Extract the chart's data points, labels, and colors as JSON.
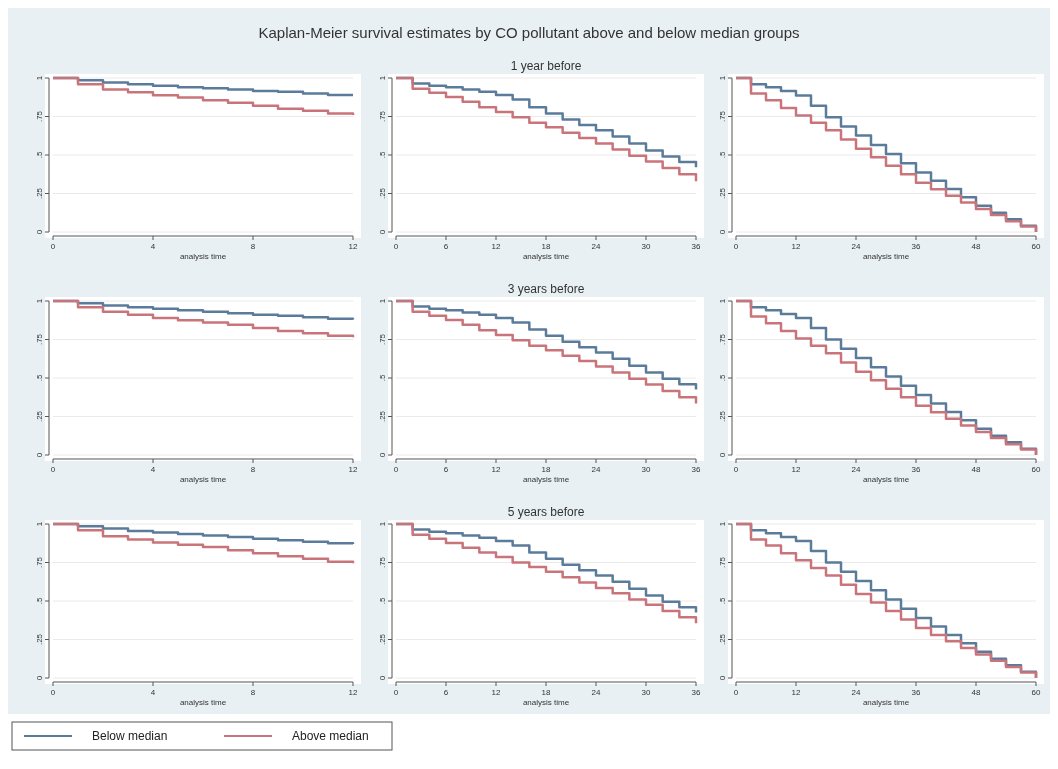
{
  "chart_data": [
    {
      "type": "step",
      "legend": "bottom",
      "xlabel": "analysis time",
      "x": [
        0,
        1,
        2,
        3,
        4,
        5,
        6,
        7,
        8,
        9,
        10,
        11,
        12
      ],
      "xlim": [
        0,
        12
      ],
      "xticks": [
        0,
        4,
        8,
        12
      ],
      "ylim": [
        0,
        1
      ],
      "yticks": [
        {
          "value": 0,
          "label": "0"
        },
        {
          "value": 0.25,
          "label": ".25"
        },
        {
          "value": 0.5,
          "label": ".5"
        },
        {
          "value": 0.75,
          "label": ".75"
        },
        {
          "value": 1,
          "label": "1"
        }
      ],
      "grid": "y",
      "series": [
        {
          "name": "Below median",
          "color": "#5b7b9b",
          "values": [
            1,
            0.985,
            0.97,
            0.96,
            0.95,
            0.94,
            0.933,
            0.925,
            0.916,
            0.91,
            0.9,
            0.89,
            0.89
          ]
        },
        {
          "name": "Above median",
          "color": "#c9747a",
          "values": [
            1,
            0.96,
            0.925,
            0.907,
            0.888,
            0.873,
            0.855,
            0.84,
            0.82,
            0.8,
            0.787,
            0.77,
            0.76
          ]
        }
      ]
    },
    {
      "type": "step",
      "title": "Kaplan-Meier survival estimates by CO pollutant above and below median groups",
      "subtitle": "1 year before",
      "xlabel": "analysis time",
      "x": [
        0,
        2,
        4,
        6,
        8,
        10,
        12,
        14,
        16,
        18,
        20,
        22,
        24,
        26,
        28,
        30,
        32,
        34,
        36
      ],
      "xlim": [
        0,
        36
      ],
      "xticks": [
        0,
        6,
        12,
        18,
        24,
        30,
        36
      ],
      "ylim": [
        0,
        1
      ],
      "yticks": [
        {
          "value": 0,
          "label": "0"
        },
        {
          "value": 0.25,
          "label": ".25"
        },
        {
          "value": 0.5,
          "label": ".5"
        },
        {
          "value": 0.75,
          "label": ".75"
        },
        {
          "value": 1,
          "label": "1"
        }
      ],
      "grid": "y",
      "series": [
        {
          "color": "#5b7b9b",
          "values": [
            1,
            0.965,
            0.95,
            0.94,
            0.925,
            0.91,
            0.89,
            0.86,
            0.81,
            0.77,
            0.73,
            0.695,
            0.66,
            0.62,
            0.575,
            0.53,
            0.49,
            0.455,
            0.42
          ]
        },
        {
          "color": "#c9747a",
          "values": [
            1,
            0.93,
            0.905,
            0.877,
            0.845,
            0.81,
            0.78,
            0.745,
            0.71,
            0.68,
            0.645,
            0.61,
            0.575,
            0.535,
            0.495,
            0.457,
            0.415,
            0.375,
            0.33
          ]
        }
      ]
    },
    {
      "type": "step",
      "xlabel": "analysis time",
      "x": [
        0,
        3,
        6,
        9,
        12,
        15,
        18,
        21,
        24,
        27,
        30,
        33,
        36,
        39,
        42,
        45,
        48,
        51,
        54,
        57,
        60
      ],
      "xlim": [
        0,
        60
      ],
      "xticks": [
        0,
        12,
        24,
        36,
        48,
        60
      ],
      "ylim": [
        0,
        1
      ],
      "yticks": [
        {
          "value": 0,
          "label": "0"
        },
        {
          "value": 0.25,
          "label": ".25"
        },
        {
          "value": 0.5,
          "label": ".5"
        },
        {
          "value": 0.75,
          "label": ".75"
        },
        {
          "value": 1,
          "label": "1"
        }
      ],
      "grid": "y",
      "series": [
        {
          "color": "#5b7b9b",
          "values": [
            1,
            0.96,
            0.94,
            0.915,
            0.887,
            0.82,
            0.745,
            0.685,
            0.626,
            0.565,
            0.507,
            0.447,
            0.387,
            0.333,
            0.28,
            0.225,
            0.17,
            0.125,
            0.083,
            0.04,
            0
          ]
        },
        {
          "color": "#c9747a",
          "values": [
            1,
            0.9,
            0.855,
            0.805,
            0.757,
            0.71,
            0.66,
            0.6,
            0.54,
            0.485,
            0.43,
            0.375,
            0.32,
            0.277,
            0.235,
            0.192,
            0.15,
            0.11,
            0.07,
            0.035,
            0
          ]
        }
      ]
    },
    {
      "type": "step",
      "xlabel": "analysis time",
      "x": [
        0,
        1,
        2,
        3,
        4,
        5,
        6,
        7,
        8,
        9,
        10,
        11,
        12
      ],
      "xlim": [
        0,
        12
      ],
      "xticks": [
        0,
        4,
        8,
        12
      ],
      "ylim": [
        0,
        1
      ],
      "yticks": [
        {
          "value": 0,
          "label": "0"
        },
        {
          "value": 0.25,
          "label": ".25"
        },
        {
          "value": 0.5,
          "label": ".5"
        },
        {
          "value": 0.75,
          "label": ".75"
        },
        {
          "value": 1,
          "label": "1"
        }
      ],
      "grid": "y",
      "series": [
        {
          "color": "#5b7b9b",
          "values": [
            1,
            0.985,
            0.97,
            0.96,
            0.95,
            0.94,
            0.93,
            0.92,
            0.91,
            0.905,
            0.895,
            0.885,
            0.88
          ]
        },
        {
          "color": "#c9747a",
          "values": [
            1,
            0.96,
            0.93,
            0.91,
            0.89,
            0.875,
            0.86,
            0.845,
            0.825,
            0.805,
            0.79,
            0.775,
            0.765
          ]
        }
      ]
    },
    {
      "type": "step",
      "subtitle": "3 years before",
      "xlabel": "analysis time",
      "x": [
        0,
        2,
        4,
        6,
        8,
        10,
        12,
        14,
        16,
        18,
        20,
        22,
        24,
        26,
        28,
        30,
        32,
        34,
        36
      ],
      "xlim": [
        0,
        36
      ],
      "xticks": [
        0,
        6,
        12,
        18,
        24,
        30,
        36
      ],
      "ylim": [
        0,
        1
      ],
      "yticks": [
        {
          "value": 0,
          "label": "0"
        },
        {
          "value": 0.25,
          "label": ".25"
        },
        {
          "value": 0.5,
          "label": ".5"
        },
        {
          "value": 0.75,
          "label": ".75"
        },
        {
          "value": 1,
          "label": "1"
        }
      ],
      "grid": "y",
      "series": [
        {
          "color": "#5b7b9b",
          "values": [
            1,
            0.965,
            0.95,
            0.94,
            0.925,
            0.91,
            0.89,
            0.86,
            0.815,
            0.775,
            0.735,
            0.7,
            0.665,
            0.625,
            0.58,
            0.535,
            0.495,
            0.46,
            0.425
          ]
        },
        {
          "color": "#c9747a",
          "values": [
            1,
            0.93,
            0.905,
            0.877,
            0.845,
            0.81,
            0.78,
            0.745,
            0.71,
            0.68,
            0.645,
            0.61,
            0.575,
            0.535,
            0.495,
            0.457,
            0.415,
            0.375,
            0.335
          ]
        }
      ]
    },
    {
      "type": "step",
      "xlabel": "analysis time",
      "x": [
        0,
        3,
        6,
        9,
        12,
        15,
        18,
        21,
        24,
        27,
        30,
        33,
        36,
        39,
        42,
        45,
        48,
        51,
        54,
        57,
        60
      ],
      "xlim": [
        0,
        60
      ],
      "xticks": [
        0,
        12,
        24,
        36,
        48,
        60
      ],
      "ylim": [
        0,
        1
      ],
      "yticks": [
        {
          "value": 0,
          "label": "0"
        },
        {
          "value": 0.25,
          "label": ".25"
        },
        {
          "value": 0.5,
          "label": ".5"
        },
        {
          "value": 0.75,
          "label": ".75"
        },
        {
          "value": 1,
          "label": "1"
        }
      ],
      "grid": "y",
      "series": [
        {
          "color": "#5b7b9b",
          "values": [
            1,
            0.96,
            0.94,
            0.915,
            0.89,
            0.825,
            0.75,
            0.69,
            0.63,
            0.57,
            0.51,
            0.45,
            0.39,
            0.335,
            0.28,
            0.225,
            0.17,
            0.125,
            0.083,
            0.04,
            0
          ]
        },
        {
          "color": "#c9747a",
          "values": [
            1,
            0.9,
            0.855,
            0.805,
            0.757,
            0.71,
            0.66,
            0.6,
            0.54,
            0.485,
            0.43,
            0.375,
            0.32,
            0.277,
            0.235,
            0.192,
            0.15,
            0.11,
            0.07,
            0.035,
            0
          ]
        }
      ]
    },
    {
      "type": "step",
      "xlabel": "analysis time",
      "x": [
        0,
        1,
        2,
        3,
        4,
        5,
        6,
        7,
        8,
        9,
        10,
        11,
        12
      ],
      "xlim": [
        0,
        12
      ],
      "xticks": [
        0,
        4,
        8,
        12
      ],
      "ylim": [
        0,
        1
      ],
      "yticks": [
        {
          "value": 0,
          "label": "0"
        },
        {
          "value": 0.25,
          "label": ".25"
        },
        {
          "value": 0.5,
          "label": ".5"
        },
        {
          "value": 0.75,
          "label": ".75"
        },
        {
          "value": 1,
          "label": "1"
        }
      ],
      "grid": "y",
      "series": [
        {
          "color": "#5b7b9b",
          "values": [
            1,
            0.985,
            0.97,
            0.955,
            0.945,
            0.935,
            0.925,
            0.915,
            0.905,
            0.895,
            0.885,
            0.875,
            0.87
          ]
        },
        {
          "color": "#c9747a",
          "values": [
            1,
            0.96,
            0.92,
            0.9,
            0.88,
            0.865,
            0.85,
            0.83,
            0.81,
            0.79,
            0.775,
            0.755,
            0.745
          ]
        }
      ]
    },
    {
      "type": "step",
      "subtitle": "5 years before",
      "xlabel": "analysis time",
      "x": [
        0,
        2,
        4,
        6,
        8,
        10,
        12,
        14,
        16,
        18,
        20,
        22,
        24,
        26,
        28,
        30,
        32,
        34,
        36
      ],
      "xlim": [
        0,
        36
      ],
      "xticks": [
        0,
        6,
        12,
        18,
        24,
        30,
        36
      ],
      "ylim": [
        0,
        1
      ],
      "yticks": [
        {
          "value": 0,
          "label": "0"
        },
        {
          "value": 0.25,
          "label": ".25"
        },
        {
          "value": 0.5,
          "label": ".5"
        },
        {
          "value": 0.75,
          "label": ".75"
        },
        {
          "value": 1,
          "label": "1"
        }
      ],
      "grid": "y",
      "series": [
        {
          "color": "#5b7b9b",
          "values": [
            1,
            0.965,
            0.95,
            0.94,
            0.925,
            0.91,
            0.89,
            0.86,
            0.815,
            0.775,
            0.735,
            0.7,
            0.665,
            0.625,
            0.58,
            0.535,
            0.495,
            0.46,
            0.425
          ]
        },
        {
          "color": "#c9747a",
          "values": [
            1,
            0.93,
            0.905,
            0.877,
            0.845,
            0.815,
            0.785,
            0.75,
            0.72,
            0.69,
            0.655,
            0.62,
            0.585,
            0.55,
            0.51,
            0.475,
            0.435,
            0.395,
            0.355
          ]
        }
      ]
    },
    {
      "type": "step",
      "xlabel": "analysis time",
      "x": [
        0,
        3,
        6,
        9,
        12,
        15,
        18,
        21,
        24,
        27,
        30,
        33,
        36,
        39,
        42,
        45,
        48,
        51,
        54,
        57,
        60
      ],
      "xlim": [
        0,
        60
      ],
      "xticks": [
        0,
        12,
        24,
        36,
        48,
        60
      ],
      "ylim": [
        0,
        1
      ],
      "yticks": [
        {
          "value": 0,
          "label": "0"
        },
        {
          "value": 0.25,
          "label": ".25"
        },
        {
          "value": 0.5,
          "label": ".5"
        },
        {
          "value": 0.75,
          "label": ".75"
        },
        {
          "value": 1,
          "label": "1"
        }
      ],
      "grid": "y",
      "series": [
        {
          "color": "#5b7b9b",
          "values": [
            1,
            0.96,
            0.94,
            0.915,
            0.89,
            0.825,
            0.75,
            0.69,
            0.63,
            0.57,
            0.51,
            0.45,
            0.39,
            0.335,
            0.28,
            0.225,
            0.17,
            0.125,
            0.083,
            0.04,
            0
          ]
        },
        {
          "color": "#c9747a",
          "values": [
            1,
            0.9,
            0.86,
            0.81,
            0.765,
            0.715,
            0.665,
            0.605,
            0.545,
            0.49,
            0.435,
            0.38,
            0.325,
            0.28,
            0.238,
            0.195,
            0.153,
            0.112,
            0.072,
            0.036,
            0
          ]
        }
      ]
    }
  ]
}
